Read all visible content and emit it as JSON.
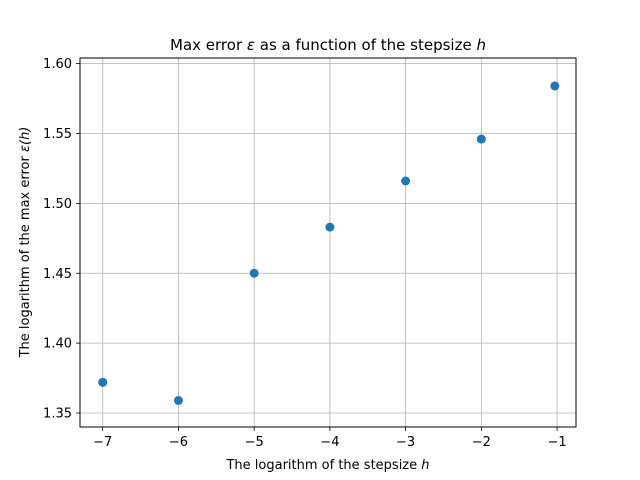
{
  "chart_data": {
    "type": "scatter",
    "title_main": "Max error ",
    "title_symbol": "ε",
    "title_rest": " as a function of the stepsize ",
    "title_var": "h",
    "xlabel_main": "The logarithm of the stepsize ",
    "xlabel_var": "h",
    "ylabel_main": "The logarithm of the max error ",
    "ylabel_fn": "ε(h)",
    "xlim": [
      -7.3,
      -0.75
    ],
    "ylim": [
      1.34,
      1.604
    ],
    "xticks": [
      -7,
      -6,
      -5,
      -4,
      -3,
      -2,
      -1
    ],
    "xtick_labels": [
      "−7",
      "−6",
      "−5",
      "−4",
      "−3",
      "−2",
      "−1"
    ],
    "yticks": [
      1.35,
      1.4,
      1.45,
      1.5,
      1.55,
      1.6
    ],
    "ytick_labels": [
      "1.35",
      "1.40",
      "1.45",
      "1.50",
      "1.55",
      "1.60"
    ],
    "grid": true,
    "marker_color": "#1f77b4",
    "points": [
      {
        "x": -7.0,
        "y": 1.372
      },
      {
        "x": -6.0,
        "y": 1.359
      },
      {
        "x": -5.0,
        "y": 1.45
      },
      {
        "x": -4.0,
        "y": 1.483
      },
      {
        "x": -3.0,
        "y": 1.516
      },
      {
        "x": -2.0,
        "y": 1.546
      },
      {
        "x": -1.03,
        "y": 1.584
      }
    ]
  }
}
